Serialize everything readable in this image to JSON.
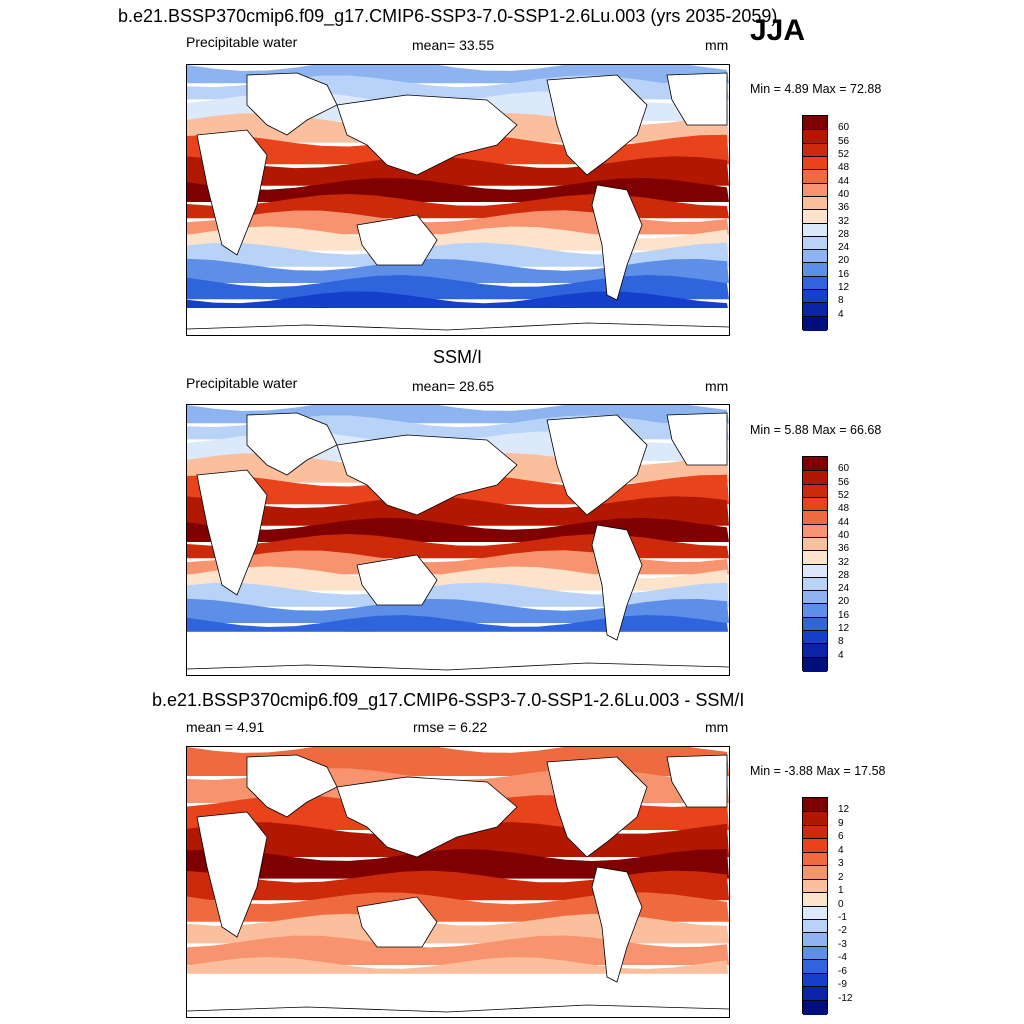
{
  "header": {
    "case_title": "b.e21.BSSP370cmip6.f09_g17.CMIP6-SSP3-7.0-SSP1-2.6Lu.003 (yrs 2035-2059)",
    "season": "JJA"
  },
  "panels": [
    {
      "id": "model",
      "center_title": "",
      "left_label": "Precipitable water",
      "mid_label": "mean=  33.55",
      "units": "mm",
      "minmax": "Min =   4.89 Max =  72.88",
      "colorbar_labels": [
        "60",
        "56",
        "52",
        "48",
        "44",
        "40",
        "36",
        "32",
        "28",
        "24",
        "20",
        "16",
        "12",
        "8",
        "4"
      ],
      "colors": [
        "#7f0000",
        "#b21800",
        "#cc2a0a",
        "#e8431a",
        "#f06a40",
        "#f7936e",
        "#fbbf9d",
        "#fde2cc",
        "#dce9fa",
        "#b8d3f7",
        "#8db4f0",
        "#5d8ee8",
        "#2f64dd",
        "#1540cc",
        "#0a24a8",
        "#000f80"
      ]
    },
    {
      "id": "obs",
      "center_title": "SSM/I",
      "left_label": "Precipitable water",
      "mid_label": "mean=  28.65",
      "units": "mm",
      "minmax": "Min =   5.88 Max =  66.68",
      "colorbar_labels": [
        "60",
        "56",
        "52",
        "48",
        "44",
        "40",
        "36",
        "32",
        "28",
        "24",
        "20",
        "16",
        "12",
        "8",
        "4"
      ],
      "colors": [
        "#7f0000",
        "#b21800",
        "#cc2a0a",
        "#e8431a",
        "#f06a40",
        "#f7936e",
        "#fbbf9d",
        "#fde2cc",
        "#dce9fa",
        "#b8d3f7",
        "#8db4f0",
        "#5d8ee8",
        "#2f64dd",
        "#1540cc",
        "#0a24a8",
        "#000f80"
      ]
    },
    {
      "id": "diff",
      "center_title": "b.e21.BSSP370cmip6.f09_g17.CMIP6-SSP3-7.0-SSP1-2.6Lu.003 - SSM/I",
      "left_label": "mean =   4.91",
      "mid_label": "rmse =   6.22",
      "units": "mm",
      "minmax": "Min =  -3.88 Max =  17.58",
      "colorbar_labels": [
        "12",
        "9",
        "6",
        "4",
        "3",
        "2",
        "1",
        "0",
        "-1",
        "-2",
        "-3",
        "-4",
        "-6",
        "-9",
        "-12"
      ],
      "colors": [
        "#7f0000",
        "#b21800",
        "#cc2a0a",
        "#e8431a",
        "#f06a40",
        "#f7936e",
        "#fbbf9d",
        "#fde2cc",
        "#dce9fa",
        "#b8d3f7",
        "#8db4f0",
        "#5d8ee8",
        "#2f64dd",
        "#1540cc",
        "#0a24a8",
        "#000f80"
      ]
    }
  ]
}
